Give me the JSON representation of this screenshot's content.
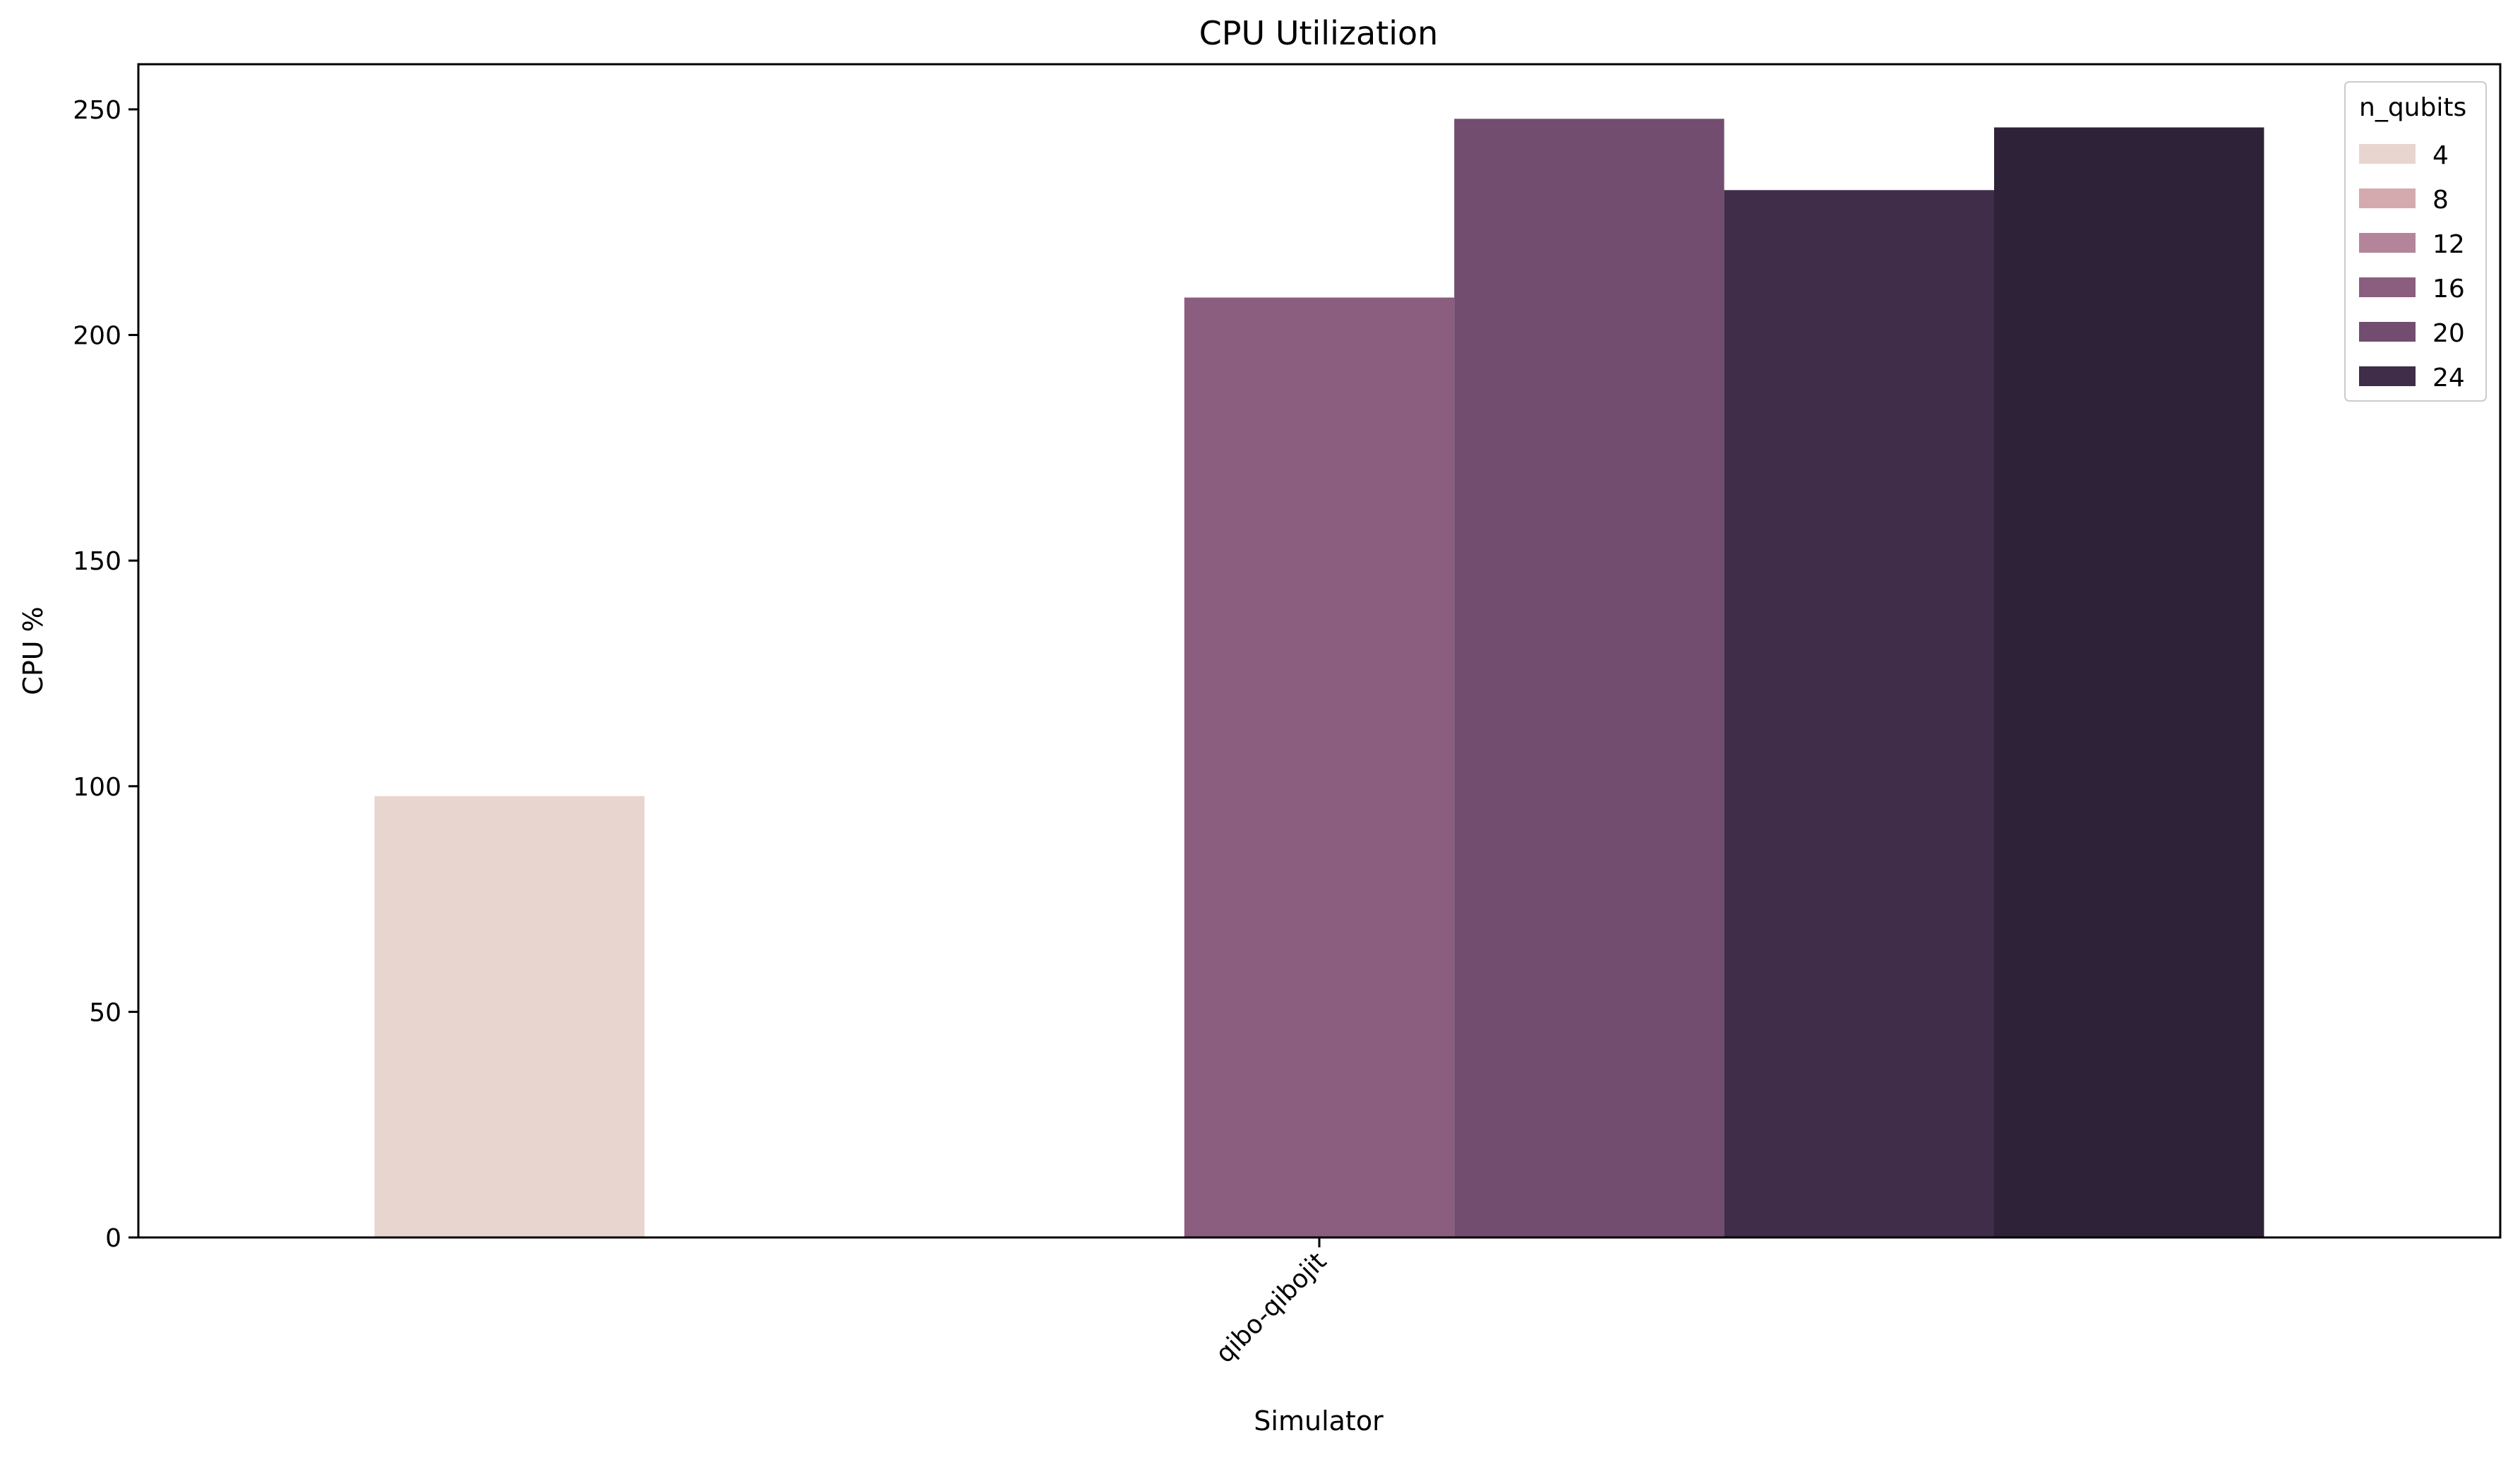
{
  "chart_data": {
    "type": "bar",
    "title": "CPU Utilization",
    "xlabel": "Simulator",
    "ylabel": "CPU %",
    "categories": [
      "qibo-qibojit"
    ],
    "ylim": [
      0,
      260
    ],
    "yticks": [
      0,
      50,
      100,
      150,
      200,
      250
    ],
    "grid": false,
    "legend": {
      "title": "n_qubits",
      "placement": "top-right"
    },
    "series": [
      {
        "name": "4",
        "values": [
          97.8
        ],
        "color": "#e8d5d0"
      },
      {
        "name": "8",
        "values": [
          null
        ],
        "color": "#d5aaae"
      },
      {
        "name": "12",
        "values": [
          null
        ],
        "color": "#b4849a"
      },
      {
        "name": "16",
        "values": [
          208.3
        ],
        "color": "#8b5d7e"
      },
      {
        "name": "20",
        "values": [
          247.9
        ],
        "color": "#724d70"
      },
      {
        "name": "24",
        "values": [
          232.1
        ],
        "color": "#3f2d4a"
      },
      {
        "name": "",
        "values": [
          246.0
        ],
        "color": "#2d2238"
      }
    ]
  }
}
